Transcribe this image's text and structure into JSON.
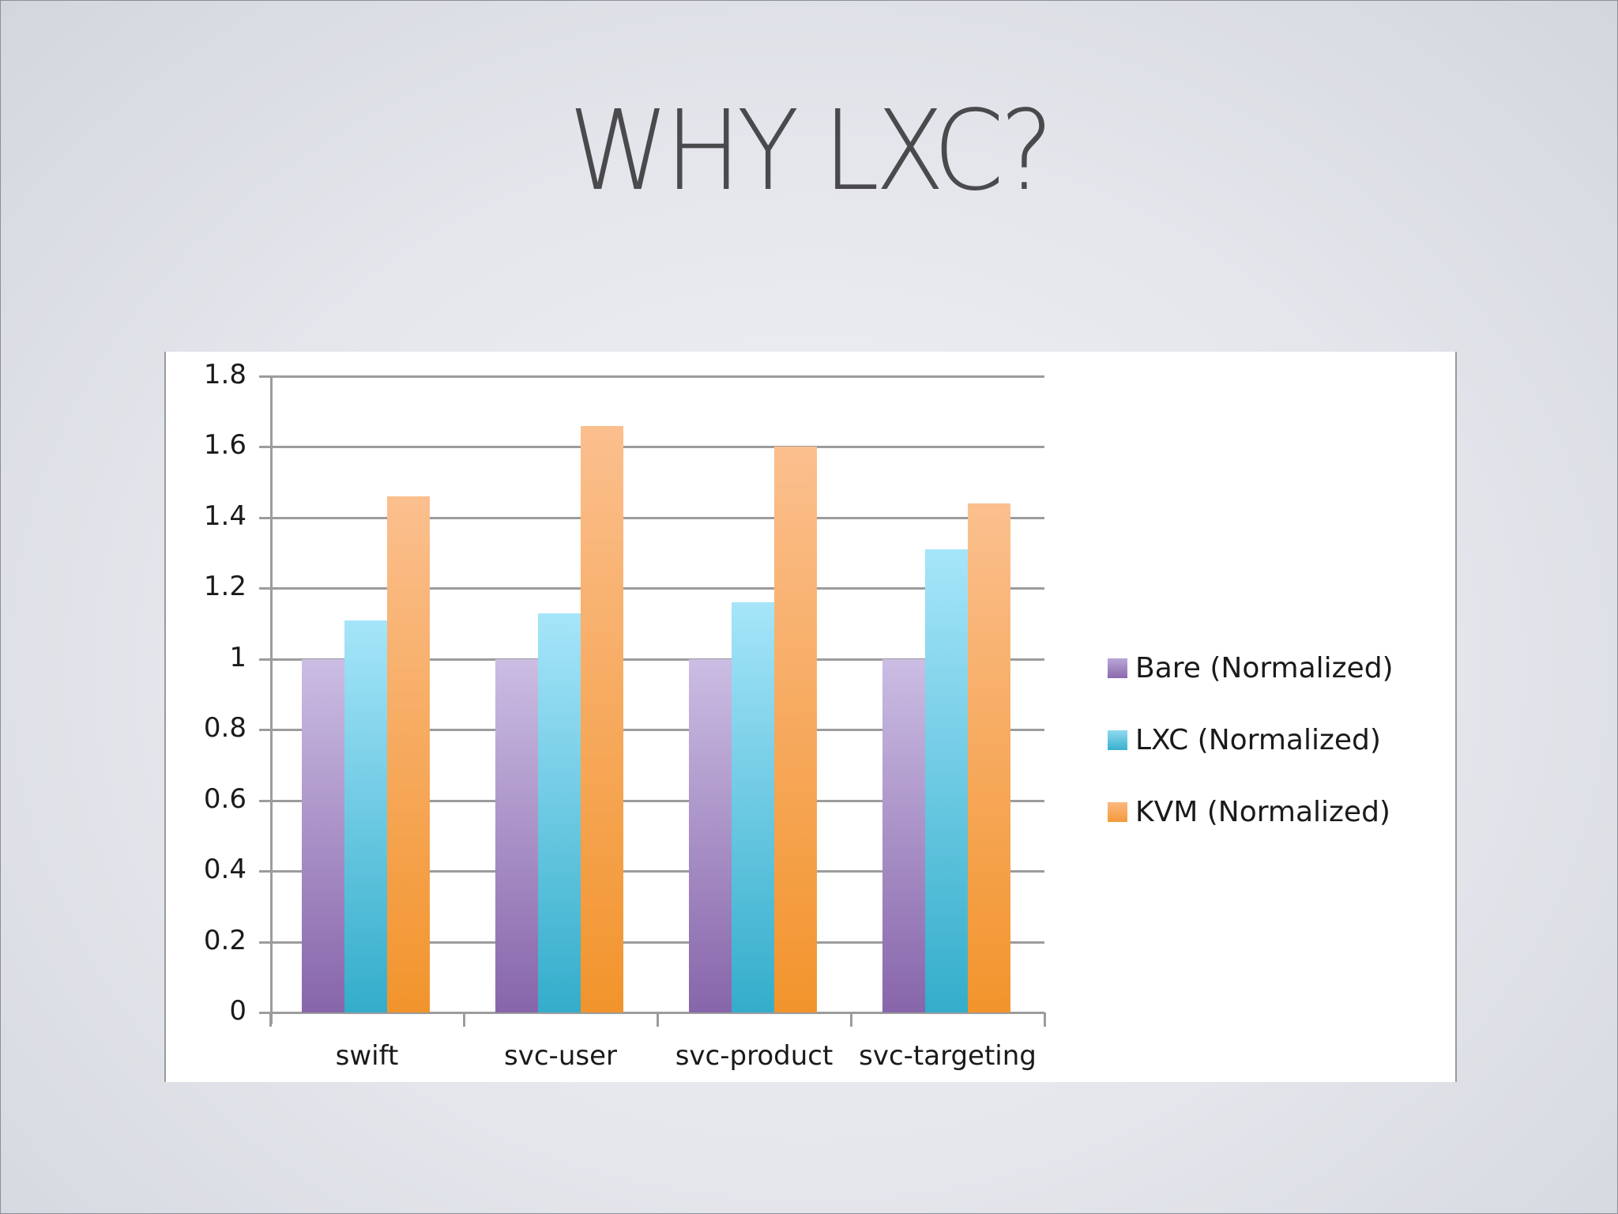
{
  "slide": {
    "title": "WHY LXC?"
  },
  "chart_data": {
    "type": "bar",
    "title": "",
    "xlabel": "",
    "ylabel": "",
    "ylim": [
      0,
      1.8
    ],
    "yticks": [
      "0",
      "0.2",
      "0.4",
      "0.6",
      "0.8",
      "1",
      "1.2",
      "1.4",
      "1.6",
      "1.8"
    ],
    "grid": true,
    "legend_position": "right",
    "categories": [
      "swift",
      "svc-user",
      "svc-product",
      "svc-targeting"
    ],
    "series": [
      {
        "name": "Bare (Normalized)",
        "color": "#9a7bbd",
        "values": [
          1.0,
          1.0,
          1.0,
          1.0
        ]
      },
      {
        "name": "LXC (Normalized)",
        "color": "#4cbfdc",
        "values": [
          1.11,
          1.13,
          1.16,
          1.31
        ]
      },
      {
        "name": "KVM (Normalized)",
        "color": "#f6a55c",
        "values": [
          1.46,
          1.66,
          1.6,
          1.44
        ]
      }
    ]
  }
}
